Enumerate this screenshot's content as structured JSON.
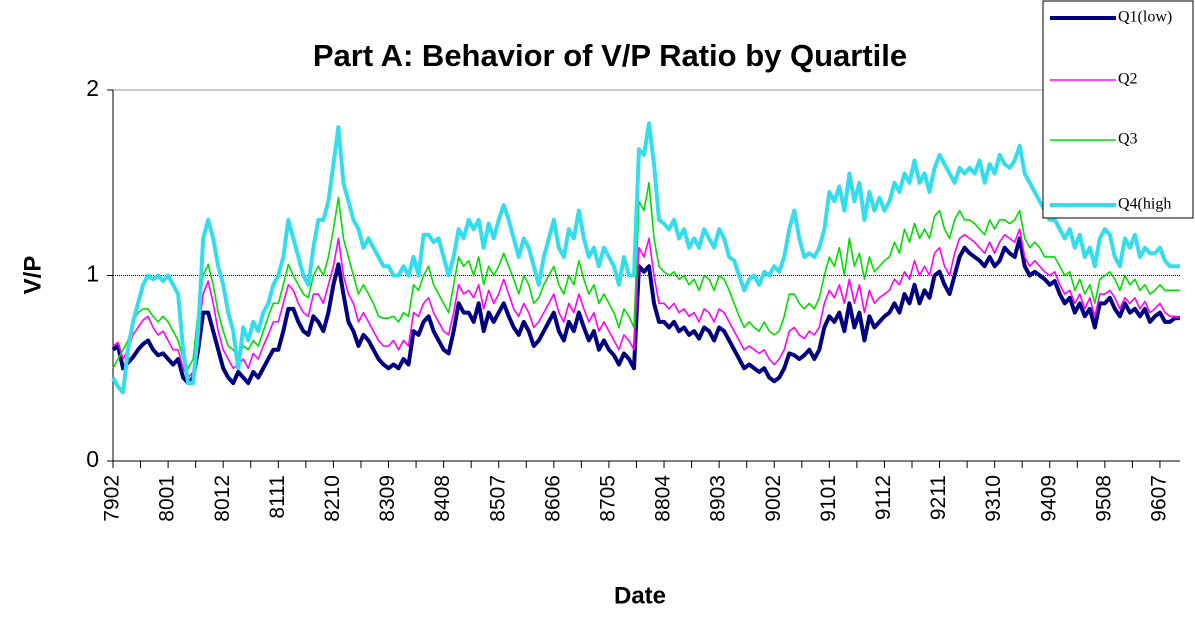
{
  "chart_data": {
    "type": "line",
    "title": "Part A: Behavior of V/P Ratio by Quartile",
    "x_label": "Date",
    "y_label": "V/P",
    "ylim": [
      0,
      2
    ],
    "yticks": [
      0,
      1,
      2
    ],
    "reference_line": 1,
    "legend": "top-right",
    "categories": [
      "7902",
      null,
      null,
      null,
      null,
      null,
      null,
      null,
      null,
      null,
      null,
      "8001",
      null,
      null,
      null,
      null,
      null,
      null,
      null,
      null,
      null,
      null,
      "8012",
      null,
      null,
      null,
      null,
      null,
      null,
      null,
      null,
      null,
      null,
      "8111",
      null,
      null,
      null,
      null,
      null,
      null,
      null,
      null,
      null,
      null,
      "8210",
      null,
      null,
      null,
      null,
      null,
      null,
      null,
      null,
      null,
      null,
      "8309",
      null,
      null,
      null,
      null,
      null,
      null,
      null,
      null,
      null,
      null,
      "8408",
      null,
      null,
      null,
      null,
      null,
      null,
      null,
      null,
      null,
      null,
      "8507",
      null,
      null,
      null,
      null,
      null,
      null,
      null,
      null,
      null,
      null,
      "8606",
      null,
      null,
      null,
      null,
      null,
      null,
      null,
      null,
      null,
      null,
      "8705",
      null,
      null,
      null,
      null,
      null,
      null,
      null,
      null,
      null,
      null,
      "8804",
      null,
      null,
      null,
      null,
      null,
      null,
      null,
      null,
      null,
      null,
      "8903",
      null,
      null,
      null,
      null,
      null,
      null,
      null,
      null,
      null,
      null,
      "9002",
      null,
      null,
      null,
      null,
      null,
      null,
      null,
      null,
      null,
      null,
      "9101",
      null,
      null,
      null,
      null,
      null,
      null,
      null,
      null,
      null,
      null,
      "9112",
      null,
      null,
      null,
      null,
      null,
      null,
      null,
      null,
      null,
      null,
      "9211",
      null,
      null,
      null,
      null,
      null,
      null,
      null,
      null,
      null,
      null,
      "9310",
      null,
      null,
      null,
      null,
      null,
      null,
      null,
      null,
      null,
      null,
      "9409",
      null,
      null,
      null,
      null,
      null,
      null,
      null,
      null,
      null,
      null,
      "9508",
      null,
      null,
      null,
      null,
      null,
      null,
      null,
      null,
      null,
      null,
      "9607",
      null,
      null,
      null,
      null
    ],
    "series": [
      {
        "name": "Q1(low)",
        "color": "#000080",
        "width": 4,
        "values": [
          0.6,
          0.62,
          0.5,
          0.53,
          0.56,
          0.6,
          0.63,
          0.65,
          0.6,
          0.57,
          0.58,
          0.55,
          0.52,
          0.55,
          0.45,
          0.42,
          0.45,
          0.6,
          0.8,
          0.8,
          0.7,
          0.6,
          0.5,
          0.45,
          0.42,
          0.48,
          0.45,
          0.42,
          0.48,
          0.45,
          0.5,
          0.55,
          0.6,
          0.6,
          0.7,
          0.82,
          0.82,
          0.75,
          0.7,
          0.68,
          0.78,
          0.75,
          0.7,
          0.8,
          0.95,
          1.06,
          0.9,
          0.75,
          0.7,
          0.62,
          0.68,
          0.65,
          0.6,
          0.55,
          0.52,
          0.5,
          0.52,
          0.5,
          0.55,
          0.52,
          0.7,
          0.68,
          0.75,
          0.78,
          0.7,
          0.65,
          0.6,
          0.58,
          0.7,
          0.85,
          0.8,
          0.8,
          0.75,
          0.85,
          0.7,
          0.8,
          0.75,
          0.8,
          0.85,
          0.78,
          0.72,
          0.68,
          0.75,
          0.7,
          0.62,
          0.65,
          0.7,
          0.75,
          0.8,
          0.7,
          0.65,
          0.75,
          0.7,
          0.8,
          0.72,
          0.65,
          0.7,
          0.6,
          0.65,
          0.6,
          0.57,
          0.52,
          0.58,
          0.55,
          0.5,
          1.05,
          1.02,
          1.05,
          0.85,
          0.75,
          0.75,
          0.72,
          0.75,
          0.7,
          0.72,
          0.68,
          0.7,
          0.66,
          0.72,
          0.7,
          0.65,
          0.72,
          0.7,
          0.65,
          0.6,
          0.55,
          0.5,
          0.52,
          0.5,
          0.48,
          0.5,
          0.45,
          0.43,
          0.45,
          0.5,
          0.58,
          0.57,
          0.55,
          0.57,
          0.6,
          0.55,
          0.6,
          0.72,
          0.78,
          0.75,
          0.8,
          0.7,
          0.85,
          0.72,
          0.8,
          0.65,
          0.78,
          0.72,
          0.75,
          0.78,
          0.8,
          0.85,
          0.8,
          0.9,
          0.85,
          0.95,
          0.85,
          0.92,
          0.88,
          1.0,
          1.02,
          0.95,
          0.9,
          1.0,
          1.1,
          1.15,
          1.12,
          1.1,
          1.08,
          1.05,
          1.1,
          1.05,
          1.08,
          1.15,
          1.12,
          1.1,
          1.2,
          1.05,
          1.0,
          1.02,
          1.0,
          0.98,
          0.95,
          0.97,
          0.9,
          0.85,
          0.88,
          0.8,
          0.85,
          0.78,
          0.82,
          0.72,
          0.85,
          0.85,
          0.88,
          0.82,
          0.78,
          0.85,
          0.8,
          0.82,
          0.78,
          0.82,
          0.75,
          0.78,
          0.8,
          0.75,
          0.75,
          0.77,
          0.77
        ]
      },
      {
        "name": "Q2",
        "color": "#ff00ff",
        "width": 1.6,
        "values": [
          0.62,
          0.64,
          0.55,
          0.6,
          0.68,
          0.72,
          0.76,
          0.78,
          0.72,
          0.68,
          0.7,
          0.65,
          0.6,
          0.6,
          0.5,
          0.45,
          0.48,
          0.7,
          0.9,
          0.97,
          0.85,
          0.7,
          0.6,
          0.55,
          0.5,
          0.52,
          0.55,
          0.5,
          0.58,
          0.55,
          0.62,
          0.68,
          0.75,
          0.75,
          0.85,
          0.95,
          0.92,
          0.85,
          0.8,
          0.78,
          0.9,
          0.9,
          0.85,
          0.95,
          1.05,
          1.2,
          1.0,
          0.9,
          0.85,
          0.75,
          0.8,
          0.75,
          0.7,
          0.65,
          0.62,
          0.62,
          0.65,
          0.6,
          0.65,
          0.62,
          0.8,
          0.78,
          0.85,
          0.88,
          0.8,
          0.75,
          0.7,
          0.68,
          0.8,
          0.95,
          0.9,
          0.92,
          0.88,
          0.95,
          0.82,
          0.92,
          0.85,
          0.9,
          0.98,
          0.9,
          0.82,
          0.78,
          0.85,
          0.8,
          0.72,
          0.75,
          0.8,
          0.85,
          0.9,
          0.8,
          0.75,
          0.85,
          0.8,
          0.9,
          0.82,
          0.75,
          0.8,
          0.7,
          0.75,
          0.7,
          0.65,
          0.6,
          0.68,
          0.65,
          0.6,
          1.15,
          1.1,
          1.2,
          1.0,
          0.85,
          0.85,
          0.82,
          0.85,
          0.8,
          0.82,
          0.78,
          0.8,
          0.75,
          0.82,
          0.8,
          0.75,
          0.82,
          0.8,
          0.75,
          0.7,
          0.65,
          0.6,
          0.62,
          0.6,
          0.58,
          0.6,
          0.55,
          0.52,
          0.55,
          0.6,
          0.7,
          0.72,
          0.68,
          0.66,
          0.7,
          0.68,
          0.72,
          0.85,
          0.92,
          0.88,
          0.95,
          0.85,
          0.98,
          0.85,
          0.95,
          0.8,
          0.92,
          0.85,
          0.88,
          0.9,
          0.92,
          0.98,
          0.95,
          1.02,
          0.98,
          1.08,
          1.0,
          1.05,
          1.0,
          1.12,
          1.15,
          1.05,
          1.0,
          1.12,
          1.2,
          1.22,
          1.2,
          1.18,
          1.15,
          1.12,
          1.18,
          1.12,
          1.18,
          1.22,
          1.2,
          1.18,
          1.25,
          1.1,
          1.05,
          1.08,
          1.05,
          1.02,
          1.0,
          1.02,
          0.95,
          0.9,
          0.92,
          0.85,
          0.9,
          0.82,
          0.88,
          0.78,
          0.9,
          0.9,
          0.92,
          0.88,
          0.82,
          0.88,
          0.85,
          0.88,
          0.82,
          0.86,
          0.8,
          0.82,
          0.85,
          0.8,
          0.78,
          0.78,
          0.77
        ]
      },
      {
        "name": "Q3",
        "color": "#00dd00",
        "width": 1.6,
        "values": [
          0.5,
          0.55,
          0.6,
          0.65,
          0.75,
          0.8,
          0.82,
          0.82,
          0.78,
          0.75,
          0.78,
          0.75,
          0.7,
          0.65,
          0.55,
          0.5,
          0.55,
          0.8,
          1.0,
          1.06,
          0.95,
          0.8,
          0.7,
          0.62,
          0.6,
          0.55,
          0.62,
          0.6,
          0.65,
          0.62,
          0.7,
          0.78,
          0.85,
          0.85,
          0.95,
          1.06,
          1.0,
          0.95,
          0.9,
          0.88,
          1.0,
          1.05,
          1.0,
          1.1,
          1.25,
          1.42,
          1.2,
          1.1,
          1.0,
          0.9,
          0.95,
          0.9,
          0.85,
          0.78,
          0.77,
          0.77,
          0.78,
          0.75,
          0.8,
          0.78,
          0.95,
          0.92,
          1.0,
          1.05,
          0.95,
          0.9,
          0.85,
          0.8,
          0.95,
          1.1,
          1.05,
          1.08,
          1.0,
          1.1,
          0.95,
          1.05,
          1.0,
          1.05,
          1.12,
          1.05,
          0.98,
          0.9,
          1.0,
          0.95,
          0.85,
          0.88,
          0.95,
          1.0,
          1.05,
          0.95,
          0.9,
          1.0,
          0.95,
          1.08,
          0.98,
          0.9,
          0.95,
          0.85,
          0.9,
          0.85,
          0.8,
          0.72,
          0.82,
          0.78,
          0.72,
          1.4,
          1.35,
          1.5,
          1.2,
          1.05,
          1.02,
          1.0,
          1.02,
          0.98,
          1.0,
          0.95,
          0.98,
          0.92,
          1.0,
          0.98,
          0.92,
          1.0,
          0.98,
          0.92,
          0.85,
          0.78,
          0.72,
          0.75,
          0.72,
          0.7,
          0.75,
          0.7,
          0.68,
          0.7,
          0.78,
          0.9,
          0.9,
          0.85,
          0.82,
          0.85,
          0.82,
          0.88,
          1.0,
          1.1,
          1.05,
          1.15,
          1.0,
          1.2,
          1.05,
          1.12,
          0.98,
          1.1,
          1.02,
          1.05,
          1.08,
          1.1,
          1.18,
          1.12,
          1.25,
          1.18,
          1.28,
          1.2,
          1.25,
          1.2,
          1.32,
          1.35,
          1.25,
          1.2,
          1.3,
          1.35,
          1.3,
          1.3,
          1.28,
          1.25,
          1.22,
          1.3,
          1.25,
          1.3,
          1.3,
          1.28,
          1.3,
          1.35,
          1.2,
          1.15,
          1.18,
          1.15,
          1.1,
          1.1,
          1.1,
          1.05,
          1.0,
          1.02,
          0.92,
          0.98,
          0.9,
          0.95,
          0.85,
          0.98,
          1.0,
          1.02,
          0.98,
          0.92,
          1.0,
          0.95,
          0.98,
          0.92,
          0.95,
          0.9,
          0.92,
          0.95,
          0.92,
          0.92,
          0.92,
          0.92
        ]
      },
      {
        "name": "Q4(high",
        "color": "#33ddee",
        "width": 4,
        "values": [
          0.45,
          0.4,
          0.37,
          0.6,
          0.75,
          0.85,
          0.95,
          1.0,
          0.98,
          1.0,
          0.97,
          1.0,
          0.95,
          0.9,
          0.6,
          0.42,
          0.42,
          0.7,
          1.2,
          1.3,
          1.2,
          1.05,
          0.95,
          0.8,
          0.7,
          0.5,
          0.72,
          0.65,
          0.75,
          0.7,
          0.8,
          0.85,
          0.95,
          1.0,
          1.1,
          1.3,
          1.2,
          1.1,
          1.0,
          0.95,
          1.15,
          1.3,
          1.3,
          1.4,
          1.6,
          1.8,
          1.5,
          1.4,
          1.3,
          1.25,
          1.15,
          1.2,
          1.15,
          1.1,
          1.05,
          1.05,
          1.0,
          1.0,
          1.05,
          1.0,
          1.1,
          1.0,
          1.22,
          1.22,
          1.18,
          1.2,
          1.1,
          1.0,
          1.1,
          1.25,
          1.2,
          1.3,
          1.25,
          1.3,
          1.15,
          1.28,
          1.2,
          1.3,
          1.38,
          1.3,
          1.2,
          1.1,
          1.2,
          1.15,
          1.05,
          0.95,
          1.1,
          1.2,
          1.3,
          1.15,
          1.1,
          1.25,
          1.2,
          1.35,
          1.2,
          1.1,
          1.15,
          1.05,
          1.15,
          1.1,
          1.05,
          0.95,
          1.1,
          1.0,
          1.0,
          1.68,
          1.65,
          1.82,
          1.6,
          1.3,
          1.28,
          1.25,
          1.3,
          1.2,
          1.25,
          1.15,
          1.2,
          1.15,
          1.25,
          1.2,
          1.15,
          1.25,
          1.2,
          1.1,
          1.08,
          1.0,
          0.92,
          0.98,
          1.0,
          0.95,
          1.02,
          1.0,
          1.05,
          1.02,
          1.1,
          1.25,
          1.35,
          1.2,
          1.1,
          1.12,
          1.1,
          1.15,
          1.25,
          1.45,
          1.4,
          1.48,
          1.35,
          1.55,
          1.4,
          1.5,
          1.3,
          1.45,
          1.35,
          1.42,
          1.35,
          1.4,
          1.5,
          1.45,
          1.55,
          1.5,
          1.62,
          1.5,
          1.55,
          1.45,
          1.58,
          1.65,
          1.6,
          1.55,
          1.5,
          1.58,
          1.55,
          1.58,
          1.55,
          1.62,
          1.5,
          1.6,
          1.55,
          1.65,
          1.6,
          1.58,
          1.62,
          1.7,
          1.55,
          1.5,
          1.45,
          1.4,
          1.35,
          1.3,
          1.3,
          1.25,
          1.2,
          1.25,
          1.15,
          1.22,
          1.1,
          1.15,
          1.05,
          1.2,
          1.25,
          1.22,
          1.1,
          1.05,
          1.2,
          1.15,
          1.22,
          1.1,
          1.15,
          1.12,
          1.12,
          1.15,
          1.08,
          1.05,
          1.05,
          1.05
        ]
      }
    ]
  }
}
